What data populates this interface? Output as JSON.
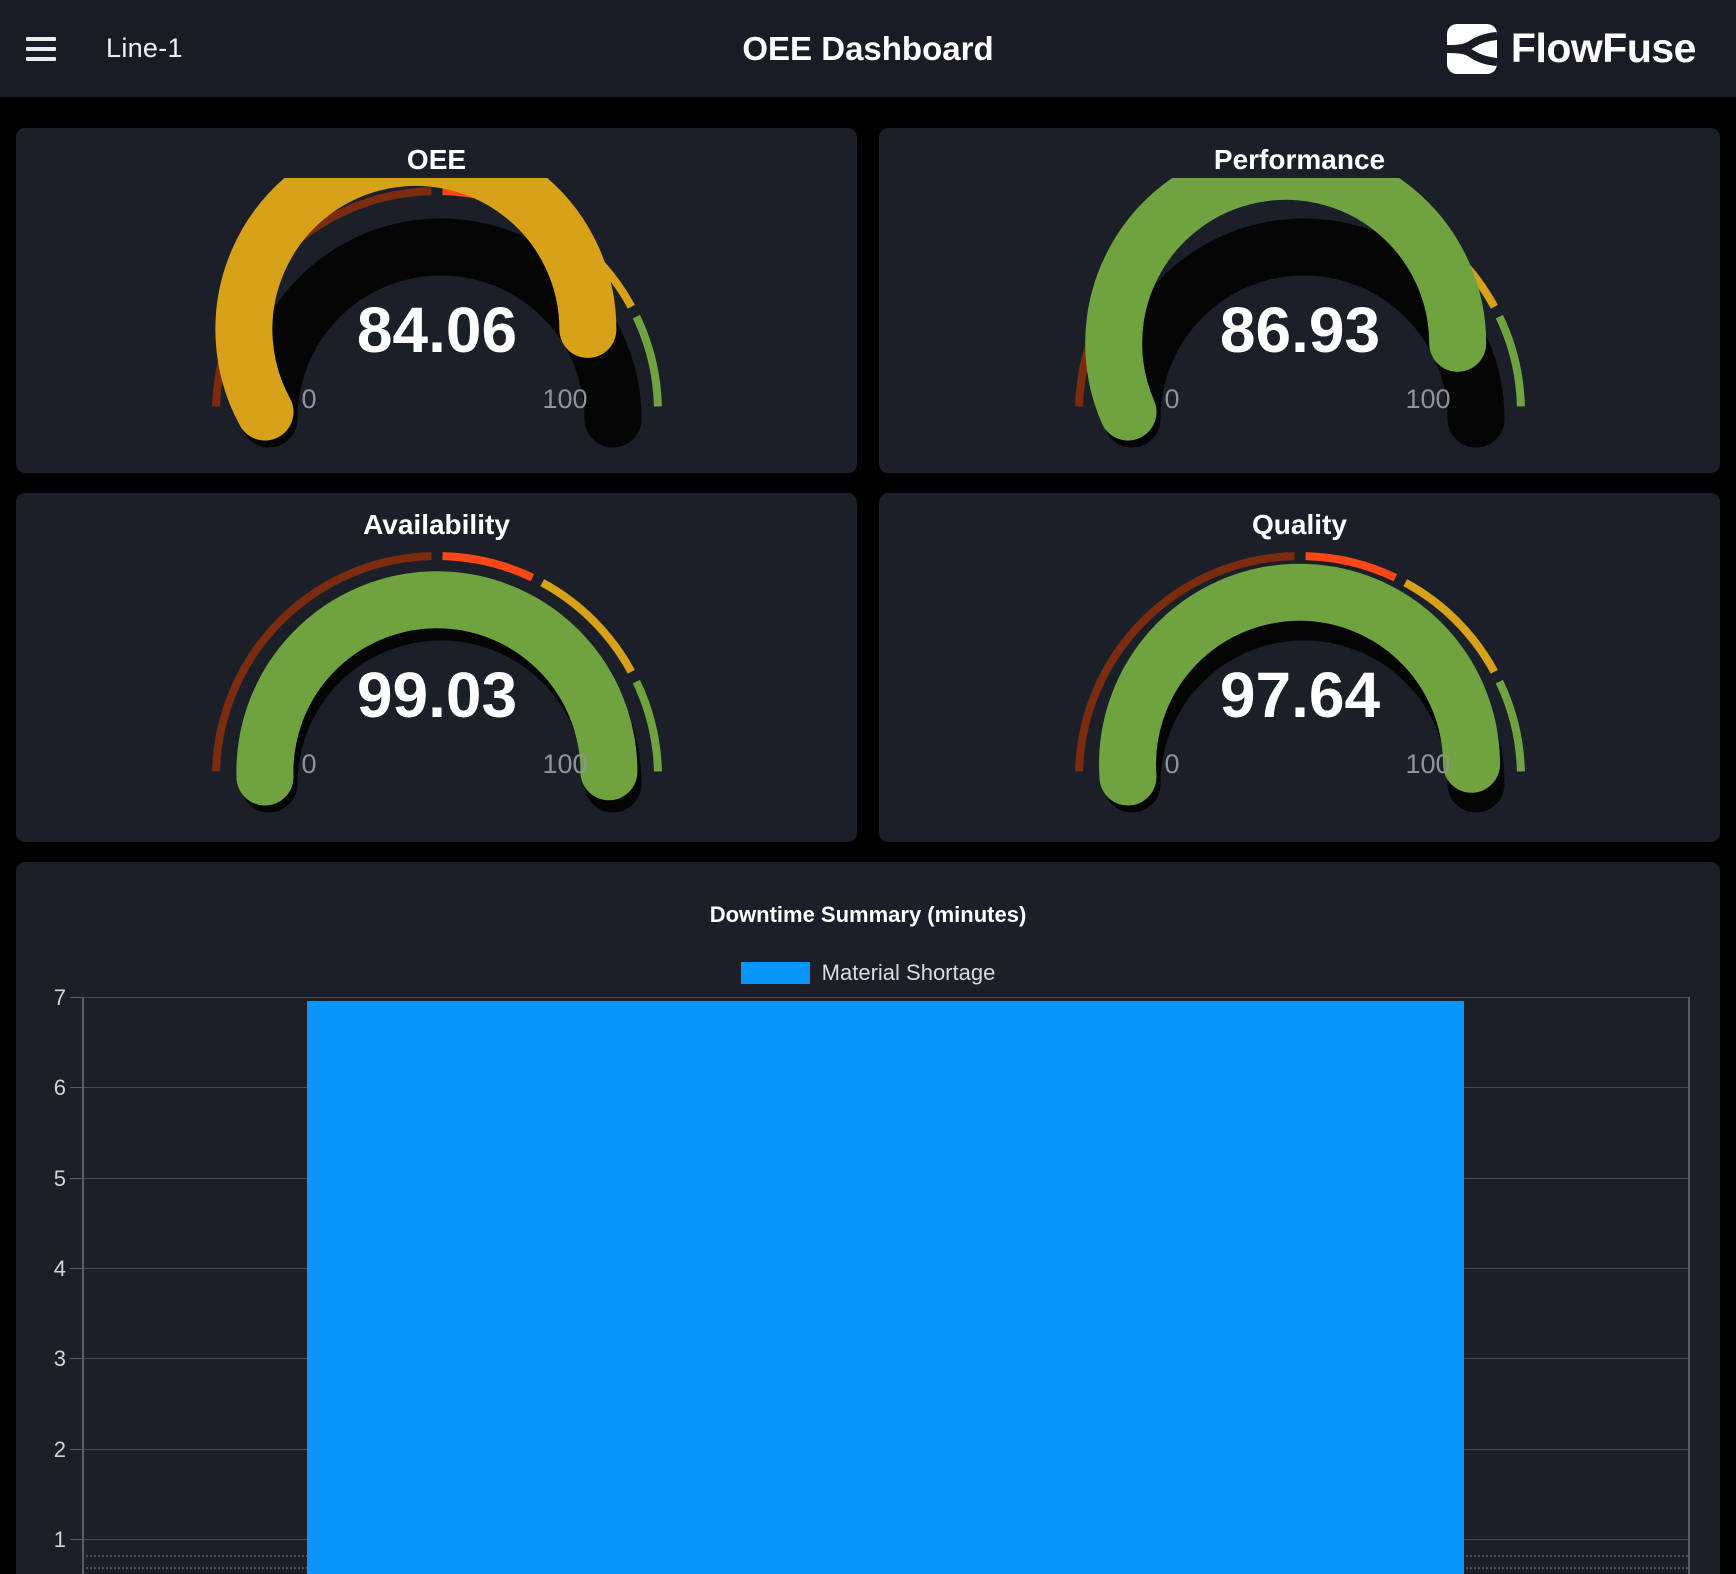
{
  "appbar": {
    "page_name": "Line-1",
    "title": "OEE Dashboard",
    "brand": "FlowFuse"
  },
  "gauges": [
    {
      "id": "oee",
      "title": "OEE",
      "value": "84.06",
      "value_num": 84.06,
      "arc_color": "#d7a219"
    },
    {
      "id": "performance",
      "title": "Performance",
      "value": "86.93",
      "value_num": 86.93,
      "arc_color": "#6ea33f"
    },
    {
      "id": "availability",
      "title": "Availability",
      "value": "99.03",
      "value_num": 99.03,
      "arc_color": "#6ea33f"
    },
    {
      "id": "quality",
      "title": "Quality",
      "value": "97.64",
      "value_num": 97.64,
      "arc_color": "#6ea33f"
    }
  ],
  "gauge_config": {
    "min": 0,
    "max": 100,
    "min_label": "0",
    "max_label": "100",
    "track_color": "#050505",
    "segments": [
      {
        "to": 50,
        "color": "#7c2c0e"
      },
      {
        "to": 65,
        "color": "#fd4716"
      },
      {
        "to": 85,
        "color": "#d7a219"
      },
      {
        "to": 100,
        "color": "#6ea33f"
      }
    ]
  },
  "chart": {
    "title": "Downtime Summary (minutes)",
    "legend": [
      {
        "label": "Material Shortage",
        "color": "#0996fc"
      }
    ]
  },
  "chart_data": {
    "type": "bar",
    "title": "Downtime Summary (minutes)",
    "categories": [
      "Material Shortage"
    ],
    "series": [
      {
        "name": "Material Shortage",
        "values": [
          7
        ],
        "color": "#0996fc"
      }
    ],
    "y_ticks": [
      7,
      6,
      5,
      4,
      3,
      2,
      1
    ],
    "ylim_visible_top": 7,
    "grid": true,
    "legend_position": "top"
  }
}
